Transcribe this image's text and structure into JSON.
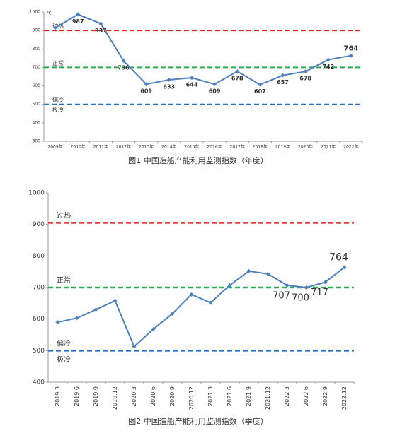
{
  "chart_data": [
    {
      "type": "line",
      "unit": "℃",
      "caption": "图1    中国造船产能利用监测指数（年度）",
      "categories": [
        "2009年",
        "2010年",
        "2011年",
        "2012年",
        "2013年",
        "2014年",
        "2015年",
        "2016年",
        "2017年",
        "2018年",
        "2019年",
        "2020年",
        "2021年",
        "2022年"
      ],
      "series": [
        {
          "color": "#4f81bd",
          "values": [
            915,
            987,
            937,
            736,
            609,
            633,
            644,
            609,
            678,
            607,
            657,
            678,
            742,
            764
          ],
          "value_labels": [
            null,
            "987",
            "937",
            "736",
            "609",
            "633",
            "644",
            "609",
            "678",
            "607",
            "657",
            "678",
            "742",
            "764"
          ],
          "highlight_last_color": "#ff0000"
        }
      ],
      "ylim": [
        300,
        1000
      ],
      "yticks": [
        300,
        400,
        500,
        600,
        700,
        800,
        900,
        1000
      ],
      "x_label_rotation": 0,
      "reference_lines": [
        {
          "value": 900,
          "label": "过热",
          "color": "#e02020"
        },
        {
          "value": 700,
          "label": "正常",
          "color": "#20b050"
        },
        {
          "value": 500,
          "label": "偏冷",
          "color": "#2070c8"
        }
      ],
      "annotations": [
        {
          "text": "极冷",
          "value": 470
        }
      ]
    },
    {
      "type": "line",
      "caption": "图2    中国造船产能利用监测指数（季度）",
      "categories": [
        "2019.3",
        "2019.6",
        "2019.9",
        "2019.12",
        "2020.3",
        "2020.6",
        "2020.9",
        "2020.12",
        "2021.3",
        "2021.6",
        "2021.9",
        "2021.12",
        "2022.3",
        "2022.6",
        "2022.9",
        "2022.12"
      ],
      "series": [
        {
          "color": "#4f81bd",
          "values": [
            590,
            603,
            630,
            658,
            513,
            568,
            617,
            678,
            652,
            707,
            752,
            743,
            707,
            700,
            717,
            764
          ],
          "value_labels": [
            null,
            null,
            null,
            null,
            null,
            null,
            null,
            null,
            null,
            null,
            null,
            null,
            "707",
            "700",
            "717",
            "764"
          ],
          "highlight_last_color": "#ff0000"
        }
      ],
      "ylim": [
        400,
        1000
      ],
      "yticks": [
        400,
        500,
        600,
        700,
        800,
        900,
        1000
      ],
      "x_label_rotation": 90,
      "reference_lines": [
        {
          "value": 905,
          "label": "过热",
          "color": "#e02020"
        },
        {
          "value": 700,
          "label": "正常",
          "color": "#20b050"
        },
        {
          "value": 500,
          "label": "偏冷",
          "color": "#2070c8"
        }
      ],
      "annotations": [
        {
          "text": "极冷",
          "value": 470
        }
      ]
    }
  ]
}
